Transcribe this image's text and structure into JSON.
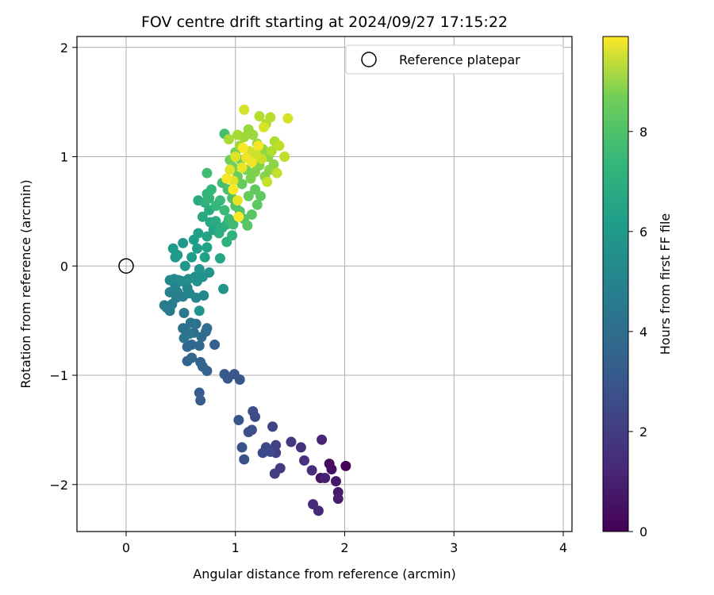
{
  "chart_data": {
    "type": "scatter",
    "title": "FOV centre drift starting at 2024/09/27 17:15:22",
    "xlabel": "Angular distance from reference (arcmin)",
    "ylabel": "Rotation from reference (arcmin)",
    "xlim": [
      -0.45,
      4.08
    ],
    "ylim": [
      -2.43,
      2.1
    ],
    "xticks": [
      0,
      1,
      2,
      3,
      4
    ],
    "yticks": [
      -2,
      -1,
      0,
      1,
      2
    ],
    "xtick_labels": [
      "0",
      "1",
      "2",
      "3",
      "4"
    ],
    "ytick_labels": [
      "−2",
      "−1",
      "0",
      "1",
      "2"
    ],
    "grid": true,
    "legend": {
      "position": "top-right",
      "label": "Reference platepar"
    },
    "reference_point": {
      "x": 0,
      "y": 0
    },
    "colorbar": {
      "label": "Hours from first FF file",
      "colormap": "viridis",
      "range": [
        0,
        9.9
      ],
      "ticks": [
        0,
        2,
        4,
        6,
        8
      ],
      "tick_labels": [
        "0",
        "2",
        "4",
        "6",
        "8"
      ]
    },
    "series": [
      {
        "color_by": "hours",
        "points": [
          {
            "x": 2.01,
            "y": -1.83,
            "c": 0.1
          },
          {
            "x": 1.86,
            "y": -1.81,
            "c": 0.3
          },
          {
            "x": 1.88,
            "y": -1.86,
            "c": 0.4
          },
          {
            "x": 1.78,
            "y": -1.94,
            "c": 0.5
          },
          {
            "x": 1.92,
            "y": -1.97,
            "c": 0.6
          },
          {
            "x": 1.94,
            "y": -2.07,
            "c": 0.7
          },
          {
            "x": 1.94,
            "y": -2.13,
            "c": 0.8
          },
          {
            "x": 1.82,
            "y": -1.94,
            "c": 0.9
          },
          {
            "x": 1.79,
            "y": -1.59,
            "c": 1.0
          },
          {
            "x": 1.76,
            "y": -2.24,
            "c": 1.1
          },
          {
            "x": 1.71,
            "y": -2.18,
            "c": 1.2
          },
          {
            "x": 1.7,
            "y": -1.87,
            "c": 1.3
          },
          {
            "x": 1.63,
            "y": -1.78,
            "c": 1.4
          },
          {
            "x": 1.6,
            "y": -1.66,
            "c": 1.5
          },
          {
            "x": 1.51,
            "y": -1.61,
            "c": 1.6
          },
          {
            "x": 1.41,
            "y": -1.85,
            "c": 1.7
          },
          {
            "x": 1.36,
            "y": -1.9,
            "c": 1.8
          },
          {
            "x": 1.37,
            "y": -1.71,
            "c": 1.9
          },
          {
            "x": 1.37,
            "y": -1.64,
            "c": 1.95
          },
          {
            "x": 1.34,
            "y": -1.47,
            "c": 2.0
          },
          {
            "x": 1.28,
            "y": -1.66,
            "c": 2.1
          },
          {
            "x": 1.25,
            "y": -1.71,
            "c": 2.2
          },
          {
            "x": 1.32,
            "y": -1.7,
            "c": 2.25
          },
          {
            "x": 1.18,
            "y": -1.38,
            "c": 2.3
          },
          {
            "x": 1.16,
            "y": -1.33,
            "c": 2.35
          },
          {
            "x": 1.15,
            "y": -1.5,
            "c": 2.4
          },
          {
            "x": 1.12,
            "y": -1.52,
            "c": 2.45
          },
          {
            "x": 1.08,
            "y": -1.77,
            "c": 2.5
          },
          {
            "x": 1.06,
            "y": -1.66,
            "c": 2.55
          },
          {
            "x": 1.03,
            "y": -1.41,
            "c": 2.6
          },
          {
            "x": 1.04,
            "y": -1.04,
            "c": 2.65
          },
          {
            "x": 0.99,
            "y": -0.99,
            "c": 2.7
          },
          {
            "x": 0.93,
            "y": -1.03,
            "c": 2.75
          },
          {
            "x": 0.9,
            "y": -0.99,
            "c": 2.8
          },
          {
            "x": 0.67,
            "y": -1.16,
            "c": 2.85
          },
          {
            "x": 0.68,
            "y": -1.23,
            "c": 2.9
          },
          {
            "x": 0.81,
            "y": -0.72,
            "c": 3.0
          },
          {
            "x": 0.74,
            "y": -0.96,
            "c": 3.05
          },
          {
            "x": 0.68,
            "y": -0.88,
            "c": 3.1
          },
          {
            "x": 0.7,
            "y": -0.92,
            "c": 3.15
          },
          {
            "x": 0.56,
            "y": -0.87,
            "c": 3.2
          },
          {
            "x": 0.6,
            "y": -0.84,
            "c": 3.25
          },
          {
            "x": 0.56,
            "y": -0.74,
            "c": 3.3
          },
          {
            "x": 0.6,
            "y": -0.72,
            "c": 3.35
          },
          {
            "x": 0.67,
            "y": -0.73,
            "c": 3.4
          },
          {
            "x": 0.69,
            "y": -0.65,
            "c": 3.45
          },
          {
            "x": 0.73,
            "y": -0.6,
            "c": 3.5
          },
          {
            "x": 0.74,
            "y": -0.57,
            "c": 3.55
          },
          {
            "x": 0.62,
            "y": -0.61,
            "c": 3.6
          },
          {
            "x": 0.55,
            "y": -0.6,
            "c": 3.65
          },
          {
            "x": 0.52,
            "y": -0.57,
            "c": 3.7
          },
          {
            "x": 0.59,
            "y": -0.52,
            "c": 3.75
          },
          {
            "x": 0.64,
            "y": -0.53,
            "c": 3.8
          },
          {
            "x": 0.58,
            "y": -0.62,
            "c": 3.85
          },
          {
            "x": 0.53,
            "y": -0.66,
            "c": 3.9
          },
          {
            "x": 0.53,
            "y": -0.43,
            "c": 3.95
          },
          {
            "x": 0.4,
            "y": -0.41,
            "c": 4.0
          },
          {
            "x": 0.35,
            "y": -0.36,
            "c": 4.05
          },
          {
            "x": 0.42,
            "y": -0.35,
            "c": 4.1
          },
          {
            "x": 0.37,
            "y": -0.38,
            "c": 4.15
          },
          {
            "x": 0.46,
            "y": -0.29,
            "c": 4.2
          },
          {
            "x": 0.52,
            "y": -0.28,
            "c": 4.25
          },
          {
            "x": 0.47,
            "y": -0.24,
            "c": 4.3
          },
          {
            "x": 0.4,
            "y": -0.24,
            "c": 4.35
          },
          {
            "x": 0.45,
            "y": -0.18,
            "c": 4.4
          },
          {
            "x": 0.56,
            "y": -0.2,
            "c": 4.45
          },
          {
            "x": 0.58,
            "y": -0.25,
            "c": 4.5
          },
          {
            "x": 0.64,
            "y": -0.29,
            "c": 4.55
          },
          {
            "x": 0.71,
            "y": -0.27,
            "c": 4.6
          },
          {
            "x": 0.4,
            "y": -0.13,
            "c": 4.65
          },
          {
            "x": 0.44,
            "y": -0.12,
            "c": 4.7
          },
          {
            "x": 0.48,
            "y": -0.13,
            "c": 4.75
          },
          {
            "x": 0.51,
            "y": -0.14,
            "c": 4.8
          },
          {
            "x": 0.57,
            "y": -0.12,
            "c": 4.85
          },
          {
            "x": 0.63,
            "y": -0.1,
            "c": 4.9
          },
          {
            "x": 0.65,
            "y": -0.14,
            "c": 4.95
          },
          {
            "x": 0.7,
            "y": -0.1,
            "c": 5.0
          },
          {
            "x": 0.76,
            "y": -0.06,
            "c": 5.05
          },
          {
            "x": 0.67,
            "y": -0.03,
            "c": 5.1
          },
          {
            "x": 0.67,
            "y": -0.41,
            "c": 5.12
          },
          {
            "x": 0.89,
            "y": -0.21,
            "c": 5.15
          },
          {
            "x": 0.54,
            "y": 0.0,
            "c": 5.2
          },
          {
            "x": 0.45,
            "y": 0.08,
            "c": 5.25
          },
          {
            "x": 0.43,
            "y": 0.16,
            "c": 5.3
          },
          {
            "x": 0.52,
            "y": 0.21,
            "c": 5.35
          },
          {
            "x": 0.47,
            "y": 0.1,
            "c": 5.4
          },
          {
            "x": 0.6,
            "y": 0.08,
            "c": 5.45
          },
          {
            "x": 0.65,
            "y": 0.16,
            "c": 5.5
          },
          {
            "x": 0.62,
            "y": 0.24,
            "c": 5.55
          },
          {
            "x": 0.66,
            "y": 0.3,
            "c": 5.6
          },
          {
            "x": 0.72,
            "y": 0.08,
            "c": 5.65
          },
          {
            "x": 0.74,
            "y": 0.17,
            "c": 5.7
          },
          {
            "x": 0.74,
            "y": 0.27,
            "c": 5.75
          },
          {
            "x": 0.8,
            "y": 0.33,
            "c": 5.8
          },
          {
            "x": 0.86,
            "y": 0.07,
            "c": 5.85
          },
          {
            "x": 0.77,
            "y": 0.4,
            "c": 5.9
          },
          {
            "x": 0.7,
            "y": 0.45,
            "c": 5.95
          },
          {
            "x": 0.66,
            "y": 0.6,
            "c": 6.0
          },
          {
            "x": 0.76,
            "y": 0.51,
            "c": 6.05
          },
          {
            "x": 0.82,
            "y": 0.41,
            "c": 6.1
          },
          {
            "x": 0.85,
            "y": 0.3,
            "c": 6.15
          },
          {
            "x": 0.88,
            "y": 0.35,
            "c": 6.2
          },
          {
            "x": 0.92,
            "y": 0.38,
            "c": 6.25
          },
          {
            "x": 0.92,
            "y": 0.22,
            "c": 6.3
          },
          {
            "x": 0.97,
            "y": 0.28,
            "c": 6.35
          },
          {
            "x": 0.72,
            "y": 0.58,
            "c": 6.4
          },
          {
            "x": 0.76,
            "y": 0.62,
            "c": 6.45
          },
          {
            "x": 0.74,
            "y": 0.66,
            "c": 6.5
          },
          {
            "x": 0.78,
            "y": 0.7,
            "c": 6.55
          },
          {
            "x": 0.82,
            "y": 0.55,
            "c": 6.6
          },
          {
            "x": 0.86,
            "y": 0.6,
            "c": 6.65
          },
          {
            "x": 0.9,
            "y": 0.51,
            "c": 6.7
          },
          {
            "x": 0.94,
            "y": 0.43,
            "c": 6.75
          },
          {
            "x": 0.98,
            "y": 0.38,
            "c": 6.8
          },
          {
            "x": 0.74,
            "y": 0.85,
            "c": 6.85
          },
          {
            "x": 0.9,
            "y": 1.21,
            "c": 6.9
          },
          {
            "x": 0.88,
            "y": 0.76,
            "c": 6.95
          },
          {
            "x": 0.93,
            "y": 0.7,
            "c": 7.0
          },
          {
            "x": 0.97,
            "y": 0.62,
            "c": 7.05
          },
          {
            "x": 1.0,
            "y": 0.55,
            "c": 7.1
          },
          {
            "x": 1.04,
            "y": 0.5,
            "c": 7.15
          },
          {
            "x": 1.08,
            "y": 0.43,
            "c": 7.2
          },
          {
            "x": 1.11,
            "y": 0.37,
            "c": 7.25
          },
          {
            "x": 1.15,
            "y": 0.47,
            "c": 7.3
          },
          {
            "x": 1.2,
            "y": 0.56,
            "c": 7.35
          },
          {
            "x": 1.23,
            "y": 0.64,
            "c": 7.4
          },
          {
            "x": 1.18,
            "y": 0.7,
            "c": 7.45
          },
          {
            "x": 1.12,
            "y": 0.64,
            "c": 7.5
          },
          {
            "x": 1.06,
            "y": 0.75,
            "c": 7.55
          },
          {
            "x": 1.02,
            "y": 0.82,
            "c": 7.6
          },
          {
            "x": 0.98,
            "y": 0.9,
            "c": 7.65
          },
          {
            "x": 0.95,
            "y": 0.97,
            "c": 7.7
          },
          {
            "x": 1.0,
            "y": 1.04,
            "c": 7.75
          },
          {
            "x": 1.05,
            "y": 0.97,
            "c": 7.8
          },
          {
            "x": 1.1,
            "y": 0.88,
            "c": 7.85
          },
          {
            "x": 1.14,
            "y": 0.8,
            "c": 7.9
          },
          {
            "x": 1.18,
            "y": 0.86,
            "c": 7.95
          },
          {
            "x": 1.22,
            "y": 0.92,
            "c": 8.0
          },
          {
            "x": 1.27,
            "y": 0.82,
            "c": 8.05
          },
          {
            "x": 1.31,
            "y": 0.88,
            "c": 8.1
          },
          {
            "x": 1.35,
            "y": 0.93,
            "c": 8.15
          },
          {
            "x": 1.3,
            "y": 1.0,
            "c": 8.2
          },
          {
            "x": 1.25,
            "y": 1.07,
            "c": 8.25
          },
          {
            "x": 1.2,
            "y": 1.12,
            "c": 8.3
          },
          {
            "x": 1.16,
            "y": 1.2,
            "c": 8.35
          },
          {
            "x": 1.12,
            "y": 1.25,
            "c": 8.4
          },
          {
            "x": 1.08,
            "y": 1.18,
            "c": 8.45
          },
          {
            "x": 1.04,
            "y": 1.1,
            "c": 8.5
          },
          {
            "x": 1.02,
            "y": 1.2,
            "c": 8.55
          },
          {
            "x": 0.94,
            "y": 1.16,
            "c": 8.6
          },
          {
            "x": 1.36,
            "y": 1.14,
            "c": 8.65
          },
          {
            "x": 1.33,
            "y": 1.05,
            "c": 8.7
          },
          {
            "x": 1.28,
            "y": 1.3,
            "c": 8.75
          },
          {
            "x": 1.22,
            "y": 1.37,
            "c": 8.8
          },
          {
            "x": 1.32,
            "y": 1.36,
            "c": 8.85
          },
          {
            "x": 1.4,
            "y": 1.1,
            "c": 8.9
          },
          {
            "x": 1.45,
            "y": 1.0,
            "c": 8.95
          },
          {
            "x": 1.38,
            "y": 0.85,
            "c": 9.0
          },
          {
            "x": 1.29,
            "y": 0.77,
            "c": 9.05
          },
          {
            "x": 1.24,
            "y": 0.98,
            "c": 9.1
          },
          {
            "x": 1.19,
            "y": 1.02,
            "c": 9.15
          },
          {
            "x": 1.13,
            "y": 1.05,
            "c": 9.2
          },
          {
            "x": 1.08,
            "y": 1.43,
            "c": 9.25
          },
          {
            "x": 1.48,
            "y": 1.35,
            "c": 9.3
          },
          {
            "x": 1.26,
            "y": 1.27,
            "c": 9.35
          },
          {
            "x": 1.0,
            "y": 1.0,
            "c": 9.4
          },
          {
            "x": 0.95,
            "y": 0.88,
            "c": 9.45
          },
          {
            "x": 0.98,
            "y": 0.78,
            "c": 9.5
          },
          {
            "x": 1.02,
            "y": 0.6,
            "c": 9.55
          },
          {
            "x": 1.06,
            "y": 0.9,
            "c": 9.6
          },
          {
            "x": 1.1,
            "y": 0.99,
            "c": 9.65
          },
          {
            "x": 1.15,
            "y": 0.95,
            "c": 9.7
          },
          {
            "x": 1.21,
            "y": 1.1,
            "c": 9.75
          },
          {
            "x": 0.92,
            "y": 0.8,
            "c": 9.8
          },
          {
            "x": 0.98,
            "y": 0.7,
            "c": 9.85
          },
          {
            "x": 1.03,
            "y": 0.45,
            "c": 9.88
          },
          {
            "x": 1.07,
            "y": 1.08,
            "c": 9.9
          }
        ]
      }
    ]
  }
}
